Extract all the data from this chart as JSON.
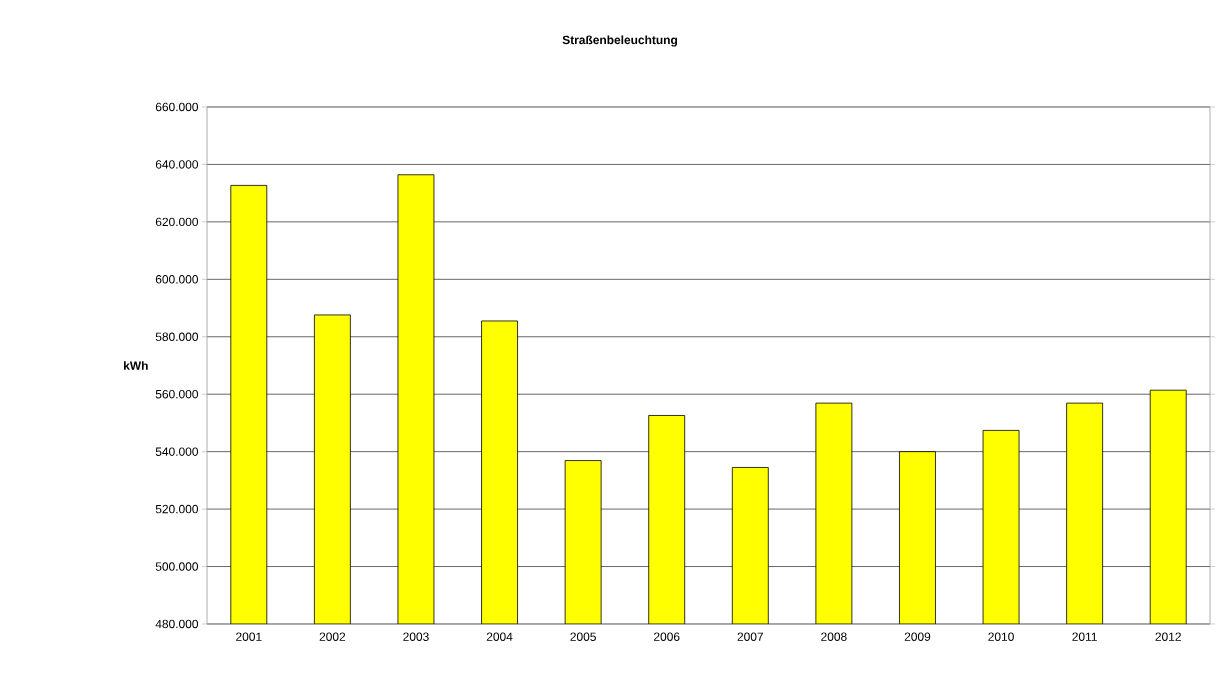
{
  "chart_data": {
    "type": "bar",
    "title": "Straßenbeleuchtung",
    "ylabel": "kWh",
    "categories": [
      "2001",
      "2002",
      "2003",
      "2004",
      "2005",
      "2006",
      "2007",
      "2008",
      "2009",
      "2010",
      "2011",
      "2012"
    ],
    "values": [
      632700,
      587600,
      636400,
      585500,
      536900,
      552600,
      534500,
      556900,
      540000,
      547400,
      556900,
      561400
    ],
    "color": "#ffff00",
    "ylim": [
      480000,
      660000
    ],
    "yticks": [
      {
        "value": 480000,
        "label": "480.000"
      },
      {
        "value": 500000,
        "label": "500.000"
      },
      {
        "value": 520000,
        "label": "520.000"
      },
      {
        "value": 540000,
        "label": "540.000"
      },
      {
        "value": 560000,
        "label": "560.000"
      },
      {
        "value": 580000,
        "label": "580.000"
      },
      {
        "value": 600000,
        "label": "600.000"
      },
      {
        "value": 620000,
        "label": "620.000"
      },
      {
        "value": 640000,
        "label": "640.000"
      },
      {
        "value": 660000,
        "label": "660.000"
      }
    ],
    "grid": "y"
  }
}
